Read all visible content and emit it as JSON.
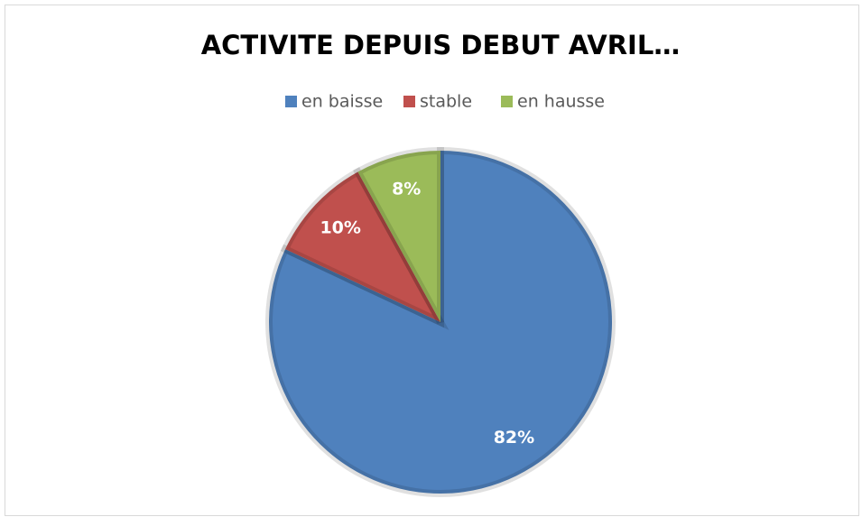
{
  "chart_data": {
    "type": "pie",
    "title": "ACTIVITE DEPUIS DEBUT AVRIL…",
    "categories": [
      "en baisse",
      "stable",
      "en hausse"
    ],
    "values": [
      82,
      10,
      8
    ],
    "value_labels": [
      "82%",
      "10%",
      "8%"
    ],
    "colors": [
      "#4f81bd",
      "#c0504d",
      "#9bbb59"
    ],
    "legend": "top"
  }
}
